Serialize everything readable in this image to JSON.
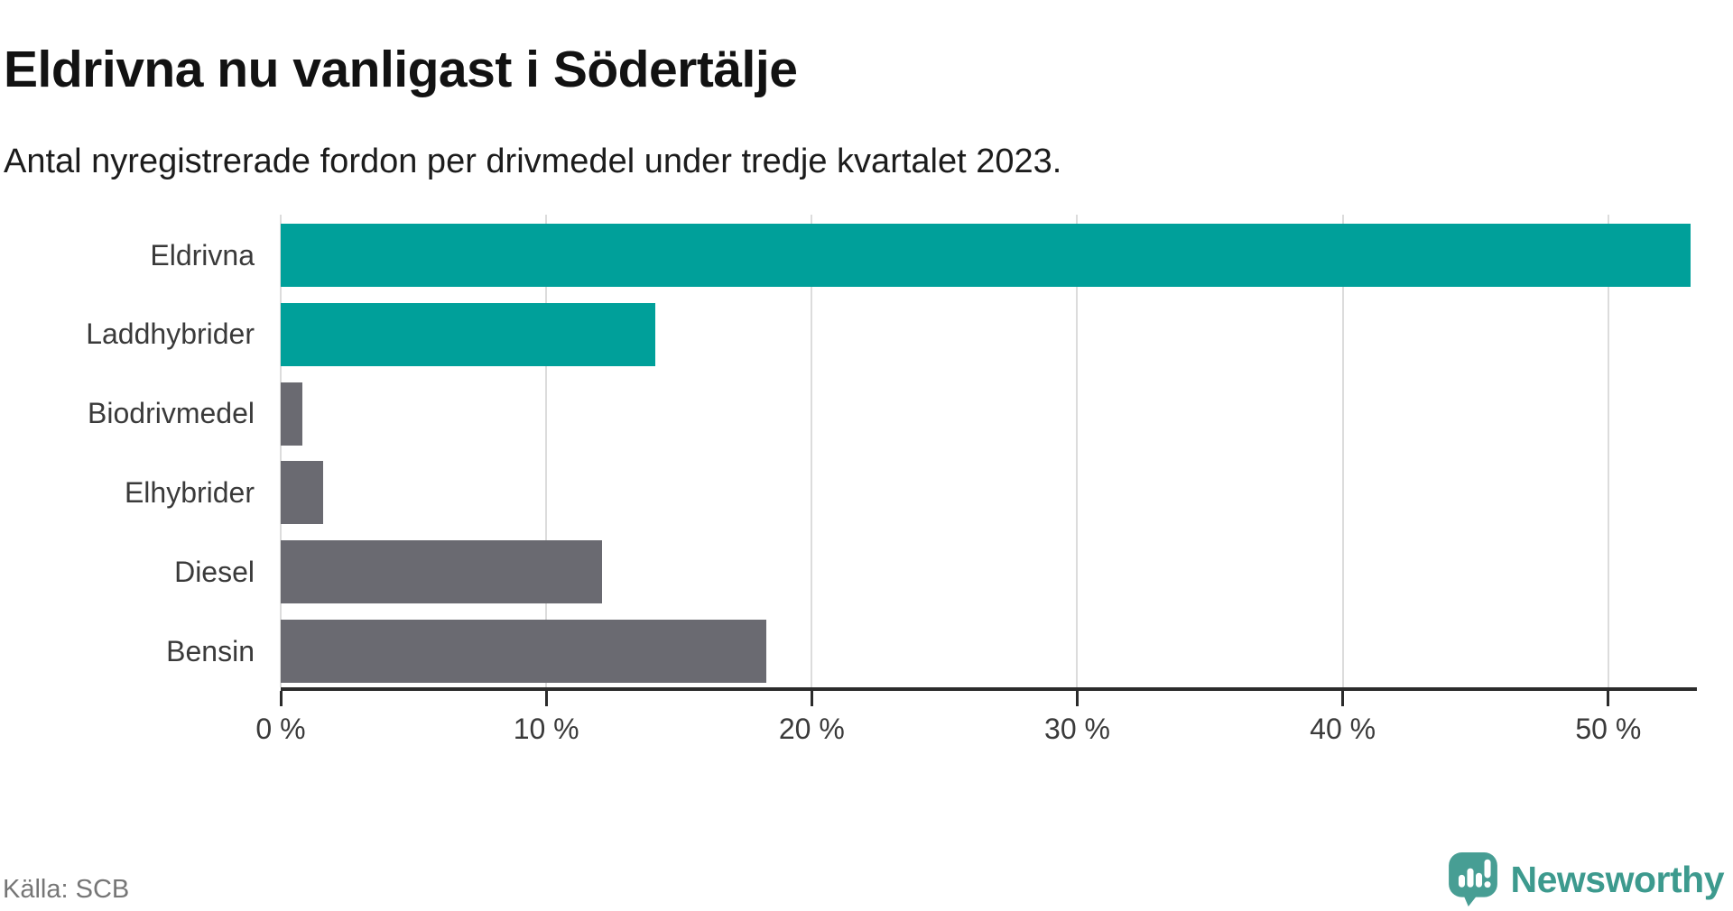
{
  "chart_data": {
    "type": "bar",
    "orientation": "horizontal",
    "title": "Eldrivna nu vanligast i Södertälje",
    "subtitle": "Antal nyregistrerade fordon per drivmedel under tredje kvartalet 2023.",
    "categories": [
      "Eldrivna",
      "Laddhybrider",
      "Biodrivmedel",
      "Elhybrider",
      "Diesel",
      "Bensin"
    ],
    "values": [
      53.1,
      14.1,
      0.8,
      1.6,
      12.1,
      18.3
    ],
    "unit": "%",
    "xlim": [
      0,
      53.1
    ],
    "ticks": [
      0,
      10,
      20,
      30,
      40,
      50
    ],
    "tick_labels": [
      "0 %",
      "10 %",
      "20 %",
      "30 %",
      "40 %",
      "50 %"
    ],
    "bar_colors": [
      "#00a09a",
      "#00a09a",
      "#6a6a71",
      "#6a6a71",
      "#6a6a71",
      "#6a6a71"
    ],
    "grid": true,
    "legend": "none",
    "xlabel": "",
    "ylabel": ""
  },
  "footer": {
    "source": "Källa: SCB",
    "brand": "Newsworthy"
  },
  "colors": {
    "accent_teal": "#00a09a",
    "bar_gray": "#6a6a71",
    "gridline": "#dcdcdc",
    "axis": "#2b2b2b",
    "logo_mark_teal": "#479e94",
    "logo_text_teal": "#3d9a8e"
  }
}
